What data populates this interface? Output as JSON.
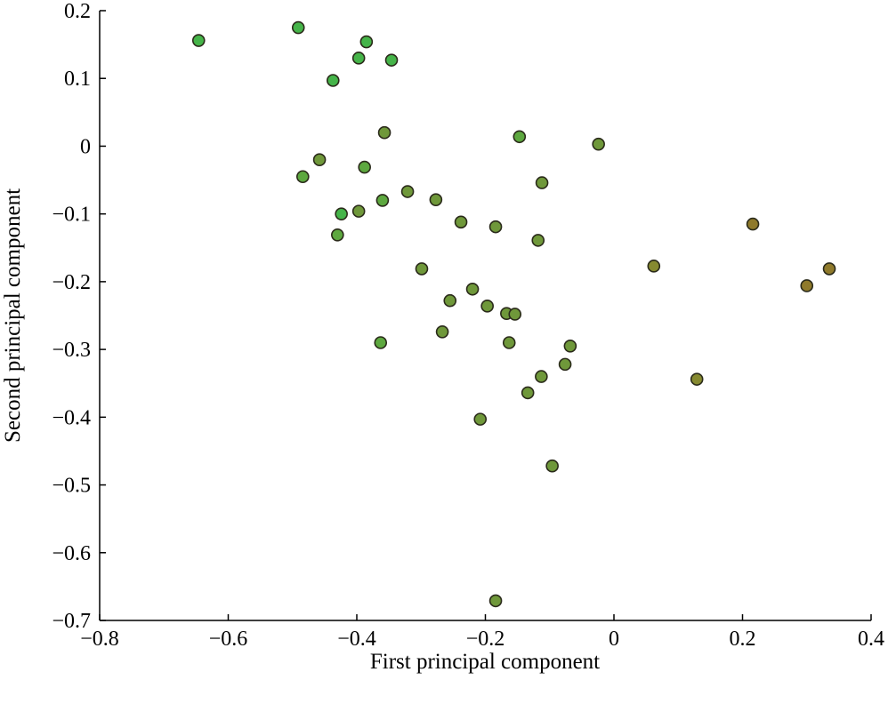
{
  "chart_data": {
    "type": "scatter",
    "title": "",
    "xlabel": "First principal component",
    "ylabel": "Second principal component",
    "xlim": [
      -0.8,
      0.4
    ],
    "ylim": [
      -0.7,
      0.2
    ],
    "xticks": [
      -0.8,
      -0.6,
      -0.4,
      -0.2,
      0,
      0.2,
      0.4
    ],
    "xtick_labels": [
      "−0.8",
      "−0.6",
      "−0.4",
      "−0.2",
      "0",
      "0.2",
      "0.4"
    ],
    "yticks": [
      0.2,
      0.1,
      0,
      -0.1,
      -0.2,
      -0.3,
      -0.4,
      -0.5,
      -0.6,
      -0.7
    ],
    "ytick_labels": [
      "0.2",
      "0.1",
      "0",
      "−0.1",
      "−0.2",
      "−0.3",
      "−0.4",
      "−0.5",
      "−0.6",
      "−0.7"
    ],
    "grid": false,
    "palette": {
      "bright_green": "#45b449",
      "green": "#5da83f",
      "olive": "#6f983a",
      "olive_brown": "#868a30",
      "brown": "#8f7a2b"
    },
    "points": [
      [
        -0.646,
        0.156,
        "bright_green"
      ],
      [
        -0.491,
        0.175,
        "bright_green"
      ],
      [
        -0.385,
        0.154,
        "bright_green"
      ],
      [
        -0.397,
        0.13,
        "bright_green"
      ],
      [
        -0.346,
        0.127,
        "bright_green"
      ],
      [
        -0.437,
        0.097,
        "bright_green"
      ],
      [
        -0.357,
        0.02,
        "olive"
      ],
      [
        -0.147,
        0.014,
        "green"
      ],
      [
        -0.024,
        0.003,
        "olive"
      ],
      [
        -0.458,
        -0.02,
        "olive"
      ],
      [
        -0.388,
        -0.031,
        "green"
      ],
      [
        -0.484,
        -0.045,
        "green"
      ],
      [
        -0.112,
        -0.054,
        "olive"
      ],
      [
        -0.321,
        -0.067,
        "olive"
      ],
      [
        -0.36,
        -0.08,
        "green"
      ],
      [
        -0.277,
        -0.079,
        "olive"
      ],
      [
        -0.397,
        -0.096,
        "olive"
      ],
      [
        -0.424,
        -0.1,
        "bright_green"
      ],
      [
        -0.238,
        -0.112,
        "olive"
      ],
      [
        -0.184,
        -0.119,
        "olive"
      ],
      [
        0.216,
        -0.115,
        "brown"
      ],
      [
        -0.43,
        -0.131,
        "green"
      ],
      [
        -0.118,
        -0.139,
        "olive"
      ],
      [
        0.062,
        -0.177,
        "olive_brown"
      ],
      [
        0.335,
        -0.181,
        "brown"
      ],
      [
        0.3,
        -0.206,
        "brown"
      ],
      [
        -0.299,
        -0.181,
        "olive"
      ],
      [
        -0.22,
        -0.211,
        "olive"
      ],
      [
        -0.255,
        -0.228,
        "olive"
      ],
      [
        -0.197,
        -0.236,
        "olive"
      ],
      [
        -0.167,
        -0.247,
        "olive"
      ],
      [
        -0.154,
        -0.248,
        "olive"
      ],
      [
        -0.267,
        -0.274,
        "olive"
      ],
      [
        -0.363,
        -0.29,
        "green"
      ],
      [
        -0.163,
        -0.29,
        "olive"
      ],
      [
        -0.068,
        -0.295,
        "olive"
      ],
      [
        -0.076,
        -0.322,
        "olive"
      ],
      [
        -0.113,
        -0.34,
        "olive"
      ],
      [
        0.129,
        -0.344,
        "olive_brown"
      ],
      [
        -0.134,
        -0.364,
        "olive"
      ],
      [
        -0.208,
        -0.403,
        "olive"
      ],
      [
        -0.096,
        -0.472,
        "olive"
      ],
      [
        -0.184,
        -0.671,
        "olive"
      ]
    ]
  }
}
